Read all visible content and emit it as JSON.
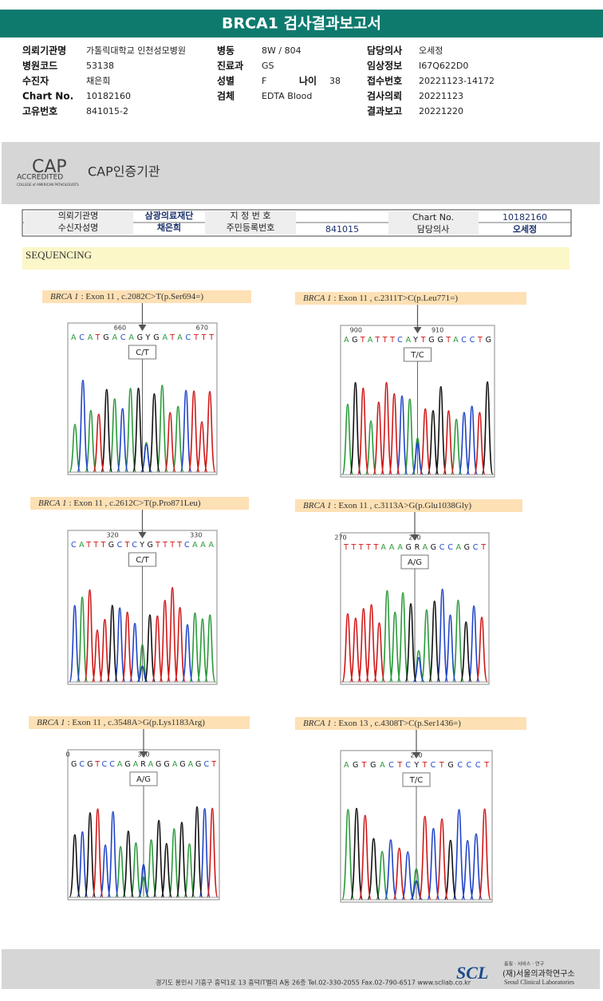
{
  "header": {
    "title": "BRCA1 검사결과보고서"
  },
  "info": {
    "columns": [
      [
        {
          "label": "의뢰기관명",
          "value": "가톨릭대학교 인천성모병원"
        },
        {
          "label": "병원코드",
          "value": "53138"
        },
        {
          "label": "수진자",
          "value": "채은희"
        },
        {
          "label": "Chart No.",
          "value": "10182160"
        },
        {
          "label": "고유번호",
          "value": "841015-2"
        }
      ],
      [
        {
          "label": "병동",
          "value": "8W / 804"
        },
        {
          "label": "진료과",
          "value": "GS"
        },
        {
          "label": "성별",
          "value": "F"
        },
        {
          "label": "검체",
          "value": "EDTA Blood"
        }
      ],
      [
        {
          "label": "담당의사",
          "value": "오세정"
        },
        {
          "label": "임상정보",
          "value": "I67Q622D0"
        },
        {
          "label": "접수번호",
          "value": "20221123-14172"
        },
        {
          "label": "검사의뢰",
          "value": "20221123"
        },
        {
          "label": "결과보고",
          "value": "20221220"
        }
      ]
    ],
    "age": {
      "label": "나이",
      "value": "38"
    }
  },
  "cap": {
    "logo": "CAP",
    "accredited": "ACCREDITED",
    "college": "COLLEGE of AMERICAN PATHOLOGISTS",
    "name": "CAP인증기관"
  },
  "table": {
    "rows": [
      [
        "의뢰기관명",
        "삼광의료재단",
        "지 정 번 호",
        "Chart No.",
        "10182160"
      ],
      [
        "수신자성명",
        "채은희",
        "주민등록번호",
        "841015",
        "담당의사",
        "오세정"
      ]
    ]
  },
  "section": "SEQUENCING",
  "panels": [
    {
      "gene": "BRCA 1",
      "detail": ": Exon 11 , c.2082C>T(p.Ser694=)",
      "positions": [
        660,
        670
      ],
      "sequence": "ACATGACAGYGATACTTT",
      "genotype": "C/T"
    },
    {
      "gene": "BRCA 1",
      "detail": ": Exon 11 , c.2311T>C(p.Leu771=)",
      "positions": [
        900,
        910
      ],
      "sequence": "AGTATTTCAYTGGTACCTG",
      "genotype": "T/C"
    },
    {
      "gene": "BRCA 1",
      "detail": ": Exon 11 , c.2612C>T(p.Pro871Leu)",
      "positions": [
        320,
        330
      ],
      "sequence": "CATTTGCTCYGTTTTCAAA",
      "genotype": "C/T"
    },
    {
      "gene": "BRCA 1",
      "detail": ": Exon 11 , c.3113A>G(p.Glu1038Gly)",
      "positions": [
        270,
        280
      ],
      "sequence": "TTTTTAAAGRAGCCAGCT",
      "genotype": "A/G"
    },
    {
      "gene": "BRCA 1",
      "detail": ": Exon 11 , c.3548A>G(p.Lys1183Arg)",
      "positions": [
        0,
        310
      ],
      "sequence": "GCGTCCAGARAGGAGAGCT",
      "genotype": "A/G"
    },
    {
      "gene": "BRCA 1",
      "detail": ": Exon 13 , c.4308T>C(p.Ser1436=)",
      "positions": [
        200
      ],
      "sequence": "AGTGACTCYTCTGCCCT",
      "genotype": "T/C"
    }
  ],
  "footer": {
    "address": "경기도 용인시 기흥구 흥덕1로 13 흥덕IT밸리 A동 26층  Tel.02-330-2055  Fax.02-790-6517  www.scllab.co.kr",
    "logo": "SCL",
    "motto": "품질 · 서비스 · 연구",
    "name": "(재)서울의과학연구소",
    "name_en": "Seoul Clinical Laboratories"
  }
}
